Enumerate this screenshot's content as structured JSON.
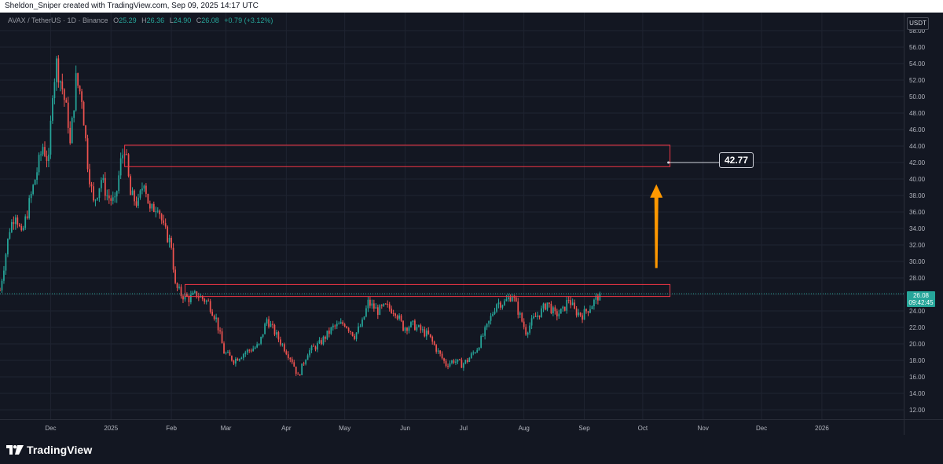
{
  "header": {
    "credit": "Sheldon_Sniper created with TradingView.com, Sep 09, 2025 14:17 UTC"
  },
  "legend": {
    "symbol": "AVAX / TetherUS · 1D · Binance",
    "open_label": "O",
    "open": "25.29",
    "high_label": "H",
    "high": "26.36",
    "low_label": "L",
    "low": "24.90",
    "close_label": "C",
    "close": "26.08",
    "change": "+0.79 (+3.12%)"
  },
  "price_scale": {
    "unit": "USDT",
    "last_price": "26.08",
    "countdown": "09:42:45"
  },
  "annotations": {
    "target": "42.77"
  },
  "footer": {
    "brand": "TradingView"
  },
  "colors": {
    "up": "#26a69a",
    "down": "#ef5350",
    "box": "#f23645",
    "arrow": "#ff9800",
    "background": "#131722"
  },
  "chart_data": {
    "type": "candlestick",
    "y_unit": "USDT",
    "ylim": [
      11,
      59.3
    ],
    "y_ticks": [
      12,
      14,
      16,
      18,
      20,
      22,
      24,
      26,
      28,
      30,
      32,
      34,
      36,
      38,
      40,
      42,
      44,
      46,
      48,
      50,
      52,
      54,
      56,
      58
    ],
    "y_tick_labels": [
      "12.00",
      "14.00",
      "16.00",
      "18.00",
      "20.00",
      "22.00",
      "24.00",
      "26.00",
      "28.00",
      "30.00",
      "32.00",
      "34.00",
      "36.00",
      "38.00",
      "40.00",
      "42.00",
      "44.00",
      "46.00",
      "48.00",
      "50.00",
      "52.00",
      "54.00",
      "56.00",
      "58.00"
    ],
    "x_ticks": [
      "Dec",
      "2025",
      "Feb",
      "Mar",
      "Apr",
      "May",
      "Jun",
      "Jul",
      "Aug",
      "Sep",
      "Oct",
      "Nov",
      "Dec",
      "2026"
    ],
    "x_tick_dates": [
      "2024-12-01",
      "2025-01-01",
      "2025-02-01",
      "2025-03-01",
      "2025-04-01",
      "2025-05-01",
      "2025-06-01",
      "2025-07-01",
      "2025-08-01",
      "2025-09-01",
      "2025-10-01",
      "2025-11-01",
      "2025-12-01",
      "2026-01-01"
    ],
    "x_range": [
      "2024-11-05",
      "2026-02-12"
    ],
    "grid": true,
    "price_path": [
      [
        "2024-11-05",
        26.5
      ],
      [
        "2024-11-10",
        34
      ],
      [
        "2024-11-13",
        36
      ],
      [
        "2024-11-16",
        33
      ],
      [
        "2024-11-20",
        37
      ],
      [
        "2024-11-24",
        41
      ],
      [
        "2024-11-27",
        44
      ],
      [
        "2024-11-30",
        42
      ],
      [
        "2024-12-02",
        51
      ],
      [
        "2024-12-04",
        54
      ],
      [
        "2024-12-07",
        51
      ],
      [
        "2024-12-10",
        47
      ],
      [
        "2024-12-11",
        44
      ],
      [
        "2024-12-14",
        52
      ],
      [
        "2024-12-17",
        50
      ],
      [
        "2024-12-20",
        42
      ],
      [
        "2024-12-23",
        37
      ],
      [
        "2024-12-27",
        40
      ],
      [
        "2024-12-30",
        38
      ],
      [
        "2025-01-03",
        37
      ],
      [
        "2025-01-06",
        42
      ],
      [
        "2025-01-08",
        44
      ],
      [
        "2025-01-11",
        38
      ],
      [
        "2025-01-15",
        37
      ],
      [
        "2025-01-18",
        40
      ],
      [
        "2025-01-21",
        36
      ],
      [
        "2025-01-25",
        37
      ],
      [
        "2025-01-28",
        34
      ],
      [
        "2025-02-01",
        32
      ],
      [
        "2025-02-03",
        27
      ],
      [
        "2025-02-06",
        26
      ],
      [
        "2025-02-10",
        25.5
      ],
      [
        "2025-02-14",
        26
      ],
      [
        "2025-02-20",
        25
      ],
      [
        "2025-02-24",
        23
      ],
      [
        "2025-02-28",
        19
      ],
      [
        "2025-03-05",
        18
      ],
      [
        "2025-03-11",
        19
      ],
      [
        "2025-03-18",
        19.8
      ],
      [
        "2025-03-22",
        23
      ],
      [
        "2025-03-27",
        21
      ],
      [
        "2025-03-31",
        19.5
      ],
      [
        "2025-04-04",
        18
      ],
      [
        "2025-04-07",
        16
      ],
      [
        "2025-04-12",
        19
      ],
      [
        "2025-04-18",
        20
      ],
      [
        "2025-04-25",
        22
      ],
      [
        "2025-05-01",
        22.5
      ],
      [
        "2025-05-06",
        21
      ],
      [
        "2025-05-10",
        22.5
      ],
      [
        "2025-05-13",
        25
      ],
      [
        "2025-05-18",
        24
      ],
      [
        "2025-05-22",
        24.5
      ],
      [
        "2025-05-27",
        24
      ],
      [
        "2025-05-31",
        22
      ],
      [
        "2025-06-05",
        22.3
      ],
      [
        "2025-06-10",
        21.5
      ],
      [
        "2025-06-13",
        21
      ],
      [
        "2025-06-18",
        19
      ],
      [
        "2025-06-22",
        17.5
      ],
      [
        "2025-06-26",
        18
      ],
      [
        "2025-06-30",
        17.5
      ],
      [
        "2025-07-03",
        18
      ],
      [
        "2025-07-08",
        19.5
      ],
      [
        "2025-07-13",
        22
      ],
      [
        "2025-07-18",
        25
      ],
      [
        "2025-07-22",
        25
      ],
      [
        "2025-07-26",
        26
      ],
      [
        "2025-07-29",
        24
      ],
      [
        "2025-08-02",
        21.5
      ],
      [
        "2025-08-06",
        23
      ],
      [
        "2025-08-10",
        24
      ],
      [
        "2025-08-13",
        25
      ],
      [
        "2025-08-17",
        23.5
      ],
      [
        "2025-08-21",
        24
      ],
      [
        "2025-08-24",
        25.5
      ],
      [
        "2025-08-27",
        24
      ],
      [
        "2025-08-31",
        23.5
      ],
      [
        "2025-09-04",
        24.5
      ],
      [
        "2025-09-09",
        26.08
      ]
    ],
    "zones": [
      {
        "y1": 41.5,
        "y2": 44.1,
        "x_start": "2025-01-08",
        "x_end": "2025-10-15"
      },
      {
        "y1": 25.75,
        "y2": 27.2,
        "x_start": "2025-02-08",
        "x_end": "2025-10-15"
      }
    ],
    "target_label": "42.77",
    "target_label_y": 42.0,
    "arrow": {
      "from": 29.2,
      "to": 38.5,
      "date": "2025-10-08"
    }
  }
}
